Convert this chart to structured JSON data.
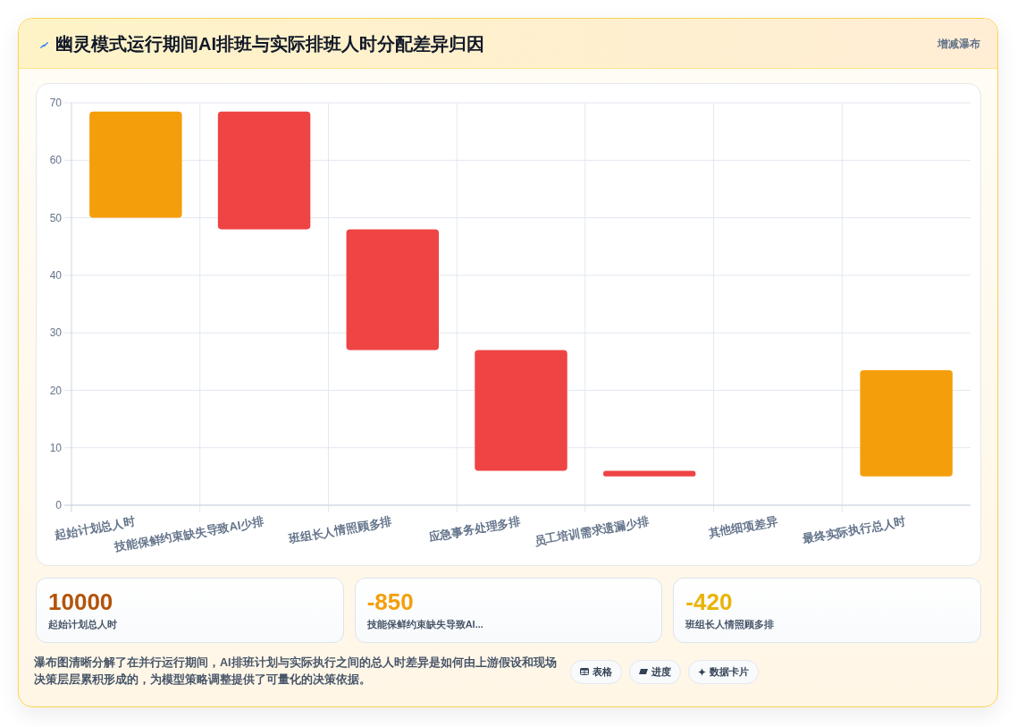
{
  "chart_data": [
    {
      "type": "bar",
      "title": "幽灵模式运行期间AI排班与实际排班人时分配差异归因",
      "subtitle": "增减瀑布",
      "categories": [
        "起始计划总人时",
        "技能保鲜约束缺失导致AI少排",
        "班组长人情照顾多排",
        "应急事务处理多排",
        "员工培训需求遗漏少排",
        "其他细项差异",
        "最终实际执行总人时"
      ],
      "values": [
        18.5,
        -20.5,
        -21,
        -21,
        -1,
        null,
        18.5
      ],
      "base": [
        50,
        68.5,
        48,
        27,
        6,
        null,
        5
      ],
      "colors": [
        "#f59e0b",
        "#ef4444",
        "#ef4444",
        "#ef4444",
        "#ef4444",
        null,
        "#f59e0b"
      ],
      "ylim": [
        0,
        70
      ],
      "yticks": [
        0,
        10,
        20,
        30,
        40,
        50,
        60,
        70
      ],
      "grid": true
    },
    {
      "type": "other",
      "annotations": [
        "10000",
        "起始计划总人时",
        "-850",
        "技能保鲜约束缺失导致AI...",
        "-420",
        "班组长人情照顾多排",
        "瀑布图清晰分解了在并行运行期间，AI排班计划与实际执行之间的总人时差异是如何由上游假设和现场决策层层累积形成的，为模型策略调整提供了可量化的决策依据。",
        "表格",
        "进度",
        "数据卡片"
      ]
    }
  ]
}
